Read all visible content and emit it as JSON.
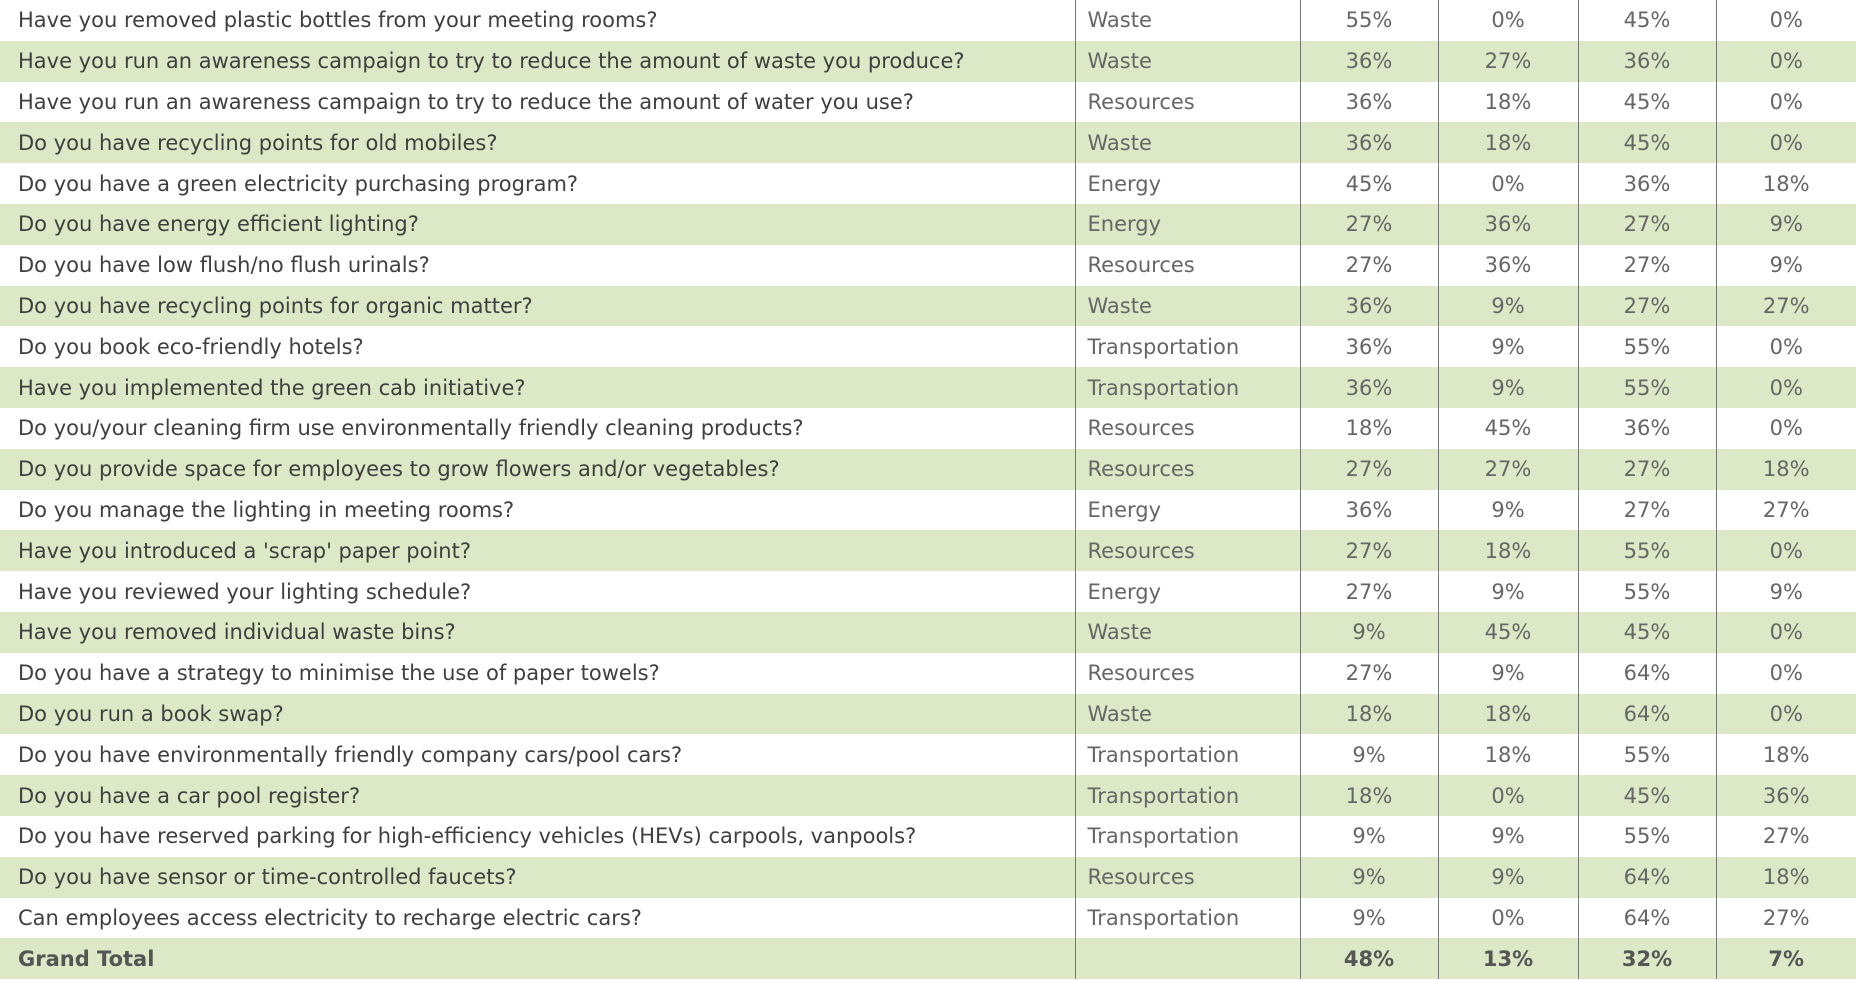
{
  "table": {
    "rows": [
      [
        "Have you removed plastic bottles from your meeting rooms?",
        "Waste",
        "55%",
        "0%",
        "45%",
        "0%"
      ],
      [
        "Have you run an awareness campaign to try to reduce the amount of waste you produce?",
        "Waste",
        "36%",
        "27%",
        "36%",
        "0%"
      ],
      [
        "Have you run an awareness campaign to try to reduce the amount of water you use?",
        "Resources",
        "36%",
        "18%",
        "45%",
        "0%"
      ],
      [
        "Do you have recycling points for old mobiles?",
        "Waste",
        "36%",
        "18%",
        "45%",
        "0%"
      ],
      [
        "Do you have a green electricity purchasing program?",
        "Energy",
        "45%",
        "0%",
        "36%",
        "18%"
      ],
      [
        "Do you have energy efficient lighting?",
        "Energy",
        "27%",
        "36%",
        "27%",
        "9%"
      ],
      [
        "Do you have low flush/no flush urinals?",
        "Resources",
        "27%",
        "36%",
        "27%",
        "9%"
      ],
      [
        "Do you have recycling points for organic matter?",
        "Waste",
        "36%",
        "9%",
        "27%",
        "27%"
      ],
      [
        "Do you book eco-friendly hotels?",
        "Transportation",
        "36%",
        "9%",
        "55%",
        "0%"
      ],
      [
        "Have you implemented the green cab initiative?",
        "Transportation",
        "36%",
        "9%",
        "55%",
        "0%"
      ],
      [
        "Do you/your cleaning firm use environmentally friendly cleaning products?",
        "Resources",
        "18%",
        "45%",
        "36%",
        "0%"
      ],
      [
        "Do you provide space for employees to grow flowers and/or vegetables?",
        "Resources",
        "27%",
        "27%",
        "27%",
        "18%"
      ],
      [
        "Do you manage the lighting in meeting rooms?",
        "Energy",
        "36%",
        "9%",
        "27%",
        "27%"
      ],
      [
        "Have you introduced a 'scrap' paper point?",
        "Resources",
        "27%",
        "18%",
        "55%",
        "0%"
      ],
      [
        "Have you reviewed your lighting schedule?",
        "Energy",
        "27%",
        "9%",
        "55%",
        "9%"
      ],
      [
        "Have you removed individual waste bins?",
        "Waste",
        "9%",
        "45%",
        "45%",
        "0%"
      ],
      [
        "Do you have a strategy to minimise the use of paper towels?",
        "Resources",
        "27%",
        "9%",
        "64%",
        "0%"
      ],
      [
        "Do you run a book swap?",
        "Waste",
        "18%",
        "18%",
        "64%",
        "0%"
      ],
      [
        "Do you have environmentally friendly company cars/pool cars?",
        "Transportation",
        "9%",
        "18%",
        "55%",
        "18%"
      ],
      [
        "Do you have a car pool register?",
        "Transportation",
        "18%",
        "0%",
        "45%",
        "36%"
      ],
      [
        "Do you have reserved parking for high-efficiency vehicles (HEVs) carpools, vanpools?",
        "Transportation",
        "9%",
        "9%",
        "55%",
        "27%"
      ],
      [
        "Do you have sensor or time-controlled faucets?",
        "Resources",
        "9%",
        "9%",
        "64%",
        "18%"
      ],
      [
        "Can employees access electricity to recharge electric cars?",
        "Transportation",
        "9%",
        "0%",
        "64%",
        "27%"
      ]
    ],
    "total": {
      "label": "Grand Total",
      "values": [
        "48%",
        "13%",
        "32%",
        "7%"
      ]
    }
  }
}
